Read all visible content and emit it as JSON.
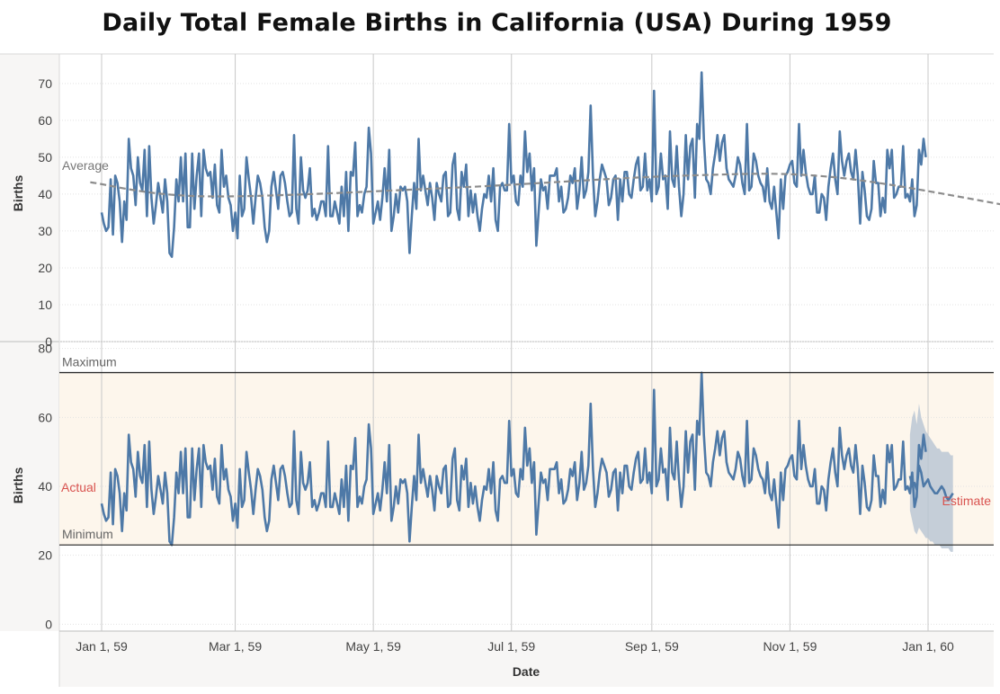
{
  "title": "Daily Total Female Births in California (USA) During 1959",
  "chart_data": [
    {
      "type": "line",
      "panel": "top",
      "ylabel": "Births",
      "ylim": [
        0,
        78
      ],
      "yticks": [
        0,
        10,
        20,
        30,
        40,
        50,
        60,
        70
      ],
      "x_start": "1959-01-01",
      "series": [
        {
          "values": [
            35,
            32,
            30,
            31,
            44,
            29,
            45,
            43,
            38,
            27,
            38,
            33,
            55,
            47,
            45,
            37,
            50,
            43,
            41,
            52,
            34,
            53,
            39,
            32,
            37,
            43,
            39,
            35,
            44,
            38,
            24,
            23,
            31,
            44,
            38,
            50,
            38,
            51,
            31,
            31,
            51,
            36,
            45,
            51,
            34,
            52,
            47,
            45,
            46,
            39,
            48,
            37,
            35,
            52,
            42,
            45,
            39,
            37,
            30,
            35,
            28,
            45,
            34,
            36,
            50,
            44,
            39,
            32,
            39,
            45,
            43,
            39,
            31,
            27,
            30,
            42,
            46,
            41,
            36,
            45,
            46,
            43,
            38,
            34,
            35,
            56,
            36,
            32,
            50,
            41,
            39,
            41,
            47,
            34,
            36,
            33,
            35,
            38,
            38,
            34,
            53,
            34,
            34,
            38,
            35,
            32,
            42,
            34,
            46,
            30,
            46,
            45,
            54,
            34,
            37,
            35,
            40,
            42,
            58,
            51,
            32,
            35,
            38,
            33,
            39,
            47,
            38,
            52,
            30,
            34,
            40,
            35,
            42,
            41,
            42,
            38,
            24,
            34,
            43,
            36,
            55,
            41,
            45,
            41,
            37,
            43,
            39,
            33,
            43,
            40,
            38,
            45,
            46,
            34,
            35,
            48,
            51,
            36,
            33,
            46,
            42,
            48,
            34,
            41,
            35,
            40,
            34,
            30,
            36,
            40,
            39,
            45,
            38,
            47,
            33,
            30,
            42,
            43,
            41,
            41,
            59,
            43,
            45,
            38,
            37,
            45,
            42,
            57,
            46,
            51,
            41,
            47,
            26,
            35,
            44,
            41,
            42,
            36,
            45,
            45,
            45,
            47,
            38,
            42,
            35,
            36,
            39,
            45,
            43,
            47,
            36,
            41,
            50,
            39,
            41,
            46,
            64,
            45,
            34,
            38,
            44,
            48,
            46,
            44,
            37,
            39,
            44,
            45,
            33,
            44,
            38,
            46,
            46,
            40,
            39,
            44,
            48,
            50,
            41,
            42,
            51,
            41,
            44,
            38,
            68,
            40,
            42,
            51,
            44,
            45,
            36,
            57,
            44,
            42,
            53,
            42,
            34,
            40,
            56,
            44,
            53,
            55,
            39,
            59,
            55,
            73,
            55,
            44,
            43,
            40,
            47,
            51,
            56,
            49,
            54,
            56,
            47,
            44,
            43,
            42,
            45,
            50,
            48,
            43,
            40,
            59,
            41,
            42,
            51,
            49,
            45,
            43,
            42,
            38,
            47,
            38,
            36,
            42,
            35,
            28,
            44,
            36,
            45,
            46,
            48,
            49,
            43,
            42,
            59,
            45,
            52,
            46,
            42,
            40,
            40,
            45,
            35,
            35,
            40,
            39,
            33,
            42,
            47,
            51,
            44,
            40,
            57,
            49,
            45,
            49,
            51,
            46,
            44,
            52,
            45,
            32,
            46,
            41,
            34,
            33,
            36,
            49,
            43,
            43,
            34,
            39,
            35,
            52,
            47,
            52,
            39,
            40,
            42,
            42,
            53,
            39,
            40,
            38,
            44,
            34,
            37,
            52,
            48,
            55,
            50
          ]
        }
      ],
      "reference_lines": [
        {
          "label": "Average",
          "style": "dashed",
          "color": "#8c8c8c",
          "x": [
            "1958-12-27",
            "1959-02-15",
            "1959-06-01",
            "1959-09-15",
            "1959-11-20",
            "1960-02-08"
          ],
          "y": [
            43.2,
            39.4,
            41.6,
            45.0,
            44.6,
            36.6
          ]
        }
      ],
      "colors": {
        "line": "#4e79a7",
        "average": "#8c8c8c"
      }
    },
    {
      "type": "line",
      "panel": "bottom",
      "ylabel": "Births",
      "ylim": [
        -2,
        82
      ],
      "yticks": [
        0,
        20,
        40,
        60,
        80
      ],
      "xlabel": "Date",
      "xticks": [
        "Jan 1, 59",
        "Mar 1, 59",
        "May 1, 59",
        "Jul 1, 59",
        "Sep 1, 59",
        "Nov 1, 59",
        "Jan 1, 60"
      ],
      "band": {
        "low": 23,
        "high": 73,
        "color": "#fdf6ec"
      },
      "reference_lines": [
        {
          "label": "Maximum",
          "value": 73
        },
        {
          "label": "Minimum",
          "value": 23
        }
      ],
      "annotations": [
        {
          "text": "Actual",
          "color": "#d9534f"
        },
        {
          "text": "Estimate",
          "color": "#d9534f"
        }
      ],
      "forecast": {
        "x_start": "1959-12-24",
        "values": [
          43,
          40,
          41,
          39,
          46,
          44,
          40,
          41,
          42,
          40,
          39,
          38,
          38,
          39,
          40,
          39,
          37,
          36,
          37,
          38
        ],
        "upper": [
          55,
          60,
          62,
          58,
          64,
          60,
          58,
          56,
          55,
          54,
          53,
          52,
          51,
          51,
          50,
          50,
          50,
          50,
          49,
          49
        ],
        "lower": [
          33,
          30,
          27,
          26,
          28,
          27,
          26,
          25,
          25,
          24,
          24,
          23,
          23,
          23,
          22,
          22,
          22,
          22,
          21,
          21
        ],
        "band_color": "#b7c4d3"
      },
      "colors": {
        "line": "#4e79a7"
      }
    }
  ]
}
